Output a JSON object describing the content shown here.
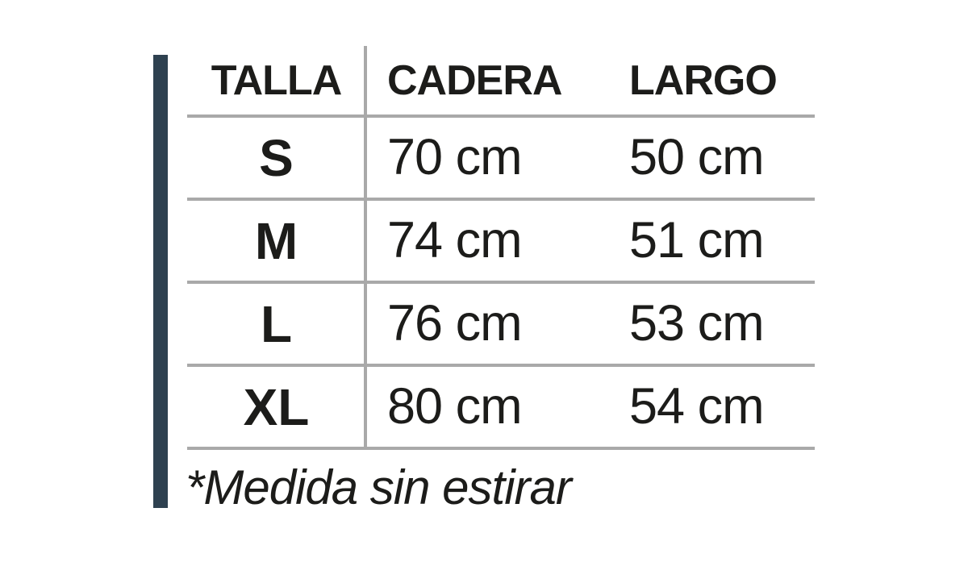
{
  "chart_data": {
    "type": "table",
    "title": "",
    "columns": [
      "TALLA",
      "CADERA",
      "LARGO"
    ],
    "rows": [
      [
        "S",
        "70 cm",
        "50 cm"
      ],
      [
        "M",
        "74 cm",
        "51 cm"
      ],
      [
        "L",
        "76 cm",
        "53 cm"
      ],
      [
        "XL",
        "80 cm",
        "54 cm"
      ]
    ],
    "cadera_cm": [
      70,
      74,
      76,
      80
    ],
    "largo_cm": [
      50,
      51,
      53,
      54
    ],
    "footnote": "*Medida sin estirar",
    "grid": "horizontal-rules-and-one-vertical-divider",
    "legend_position": "none"
  },
  "table": {
    "headers": [
      "TALLA",
      "CADERA",
      "LARGO"
    ],
    "rows": [
      {
        "size": "S",
        "cadera": "70 cm",
        "largo": "50 cm"
      },
      {
        "size": "M",
        "cadera": "74 cm",
        "largo": "51 cm"
      },
      {
        "size": "L",
        "cadera": "76 cm",
        "largo": "53 cm"
      },
      {
        "size": "XL",
        "cadera": "80 cm",
        "largo": "54 cm"
      }
    ],
    "footnote": "*Medida sin estirar"
  },
  "colors": {
    "accent_bar": "#2e4150",
    "grid_line": "#a9a9a9",
    "text": "#1c1c1a",
    "background": "#ffffff"
  }
}
